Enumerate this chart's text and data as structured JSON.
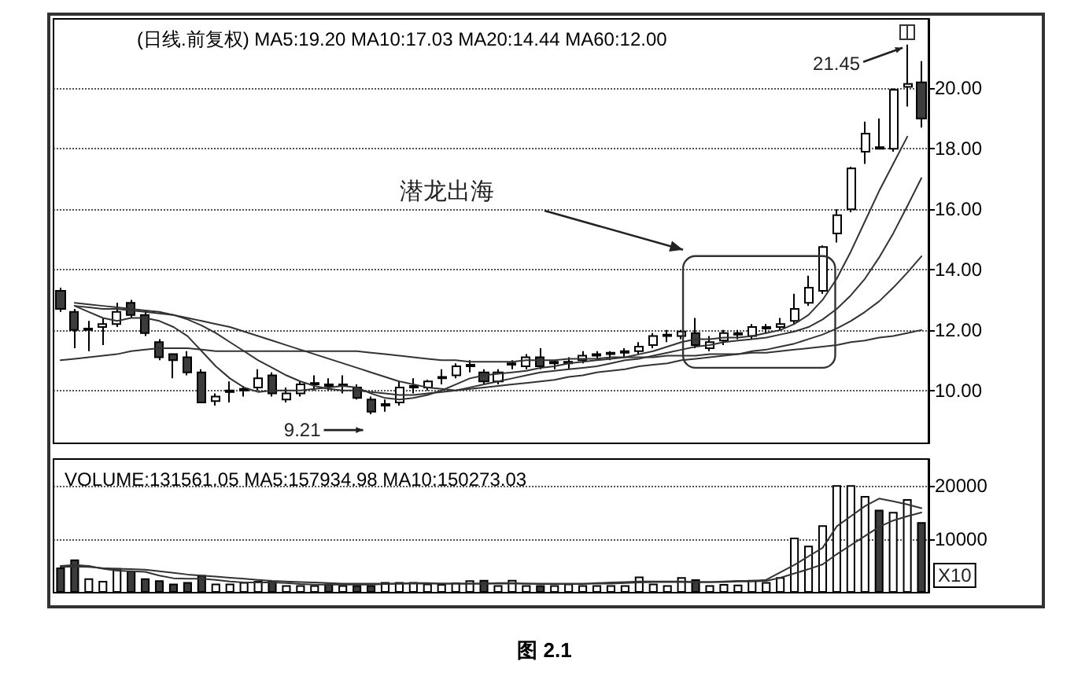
{
  "chart_data": [
    {
      "type": "candlestick",
      "title": "(日线.前复权) MA5:19.20 MA10:17.03 MA20:14.44 MA60:12.00",
      "annotations": [
        "潜龙出海",
        "9.21",
        "21.45"
      ],
      "categories": [
        null,
        null,
        null,
        null,
        null,
        null,
        null,
        null,
        null,
        null,
        null,
        null,
        null,
        null,
        null,
        null,
        null,
        null,
        null,
        null,
        null,
        null,
        null,
        null,
        null,
        null,
        null,
        null,
        null,
        null,
        null,
        null,
        null,
        null,
        null,
        null,
        null,
        null,
        null,
        null,
        null,
        null,
        null,
        null,
        null,
        null,
        null,
        null,
        null,
        null,
        null,
        null,
        null,
        null,
        null,
        null,
        null,
        null,
        null,
        null,
        null,
        null
      ],
      "ohlc": [
        [
          13.3,
          13.4,
          12.6,
          12.7
        ],
        [
          12.6,
          12.7,
          11.4,
          12.0
        ],
        [
          12.0,
          12.3,
          11.3,
          12.05
        ],
        [
          12.1,
          12.4,
          11.5,
          12.2
        ],
        [
          12.2,
          12.9,
          12.1,
          12.6
        ],
        [
          12.9,
          13.0,
          12.4,
          12.5
        ],
        [
          12.5,
          12.6,
          11.8,
          11.9
        ],
        [
          11.6,
          11.7,
          11.0,
          11.1
        ],
        [
          11.2,
          11.2,
          10.4,
          11.0
        ],
        [
          11.1,
          11.3,
          10.5,
          10.6
        ],
        [
          10.6,
          10.7,
          9.6,
          9.6
        ],
        [
          9.65,
          9.9,
          9.5,
          9.8
        ],
        [
          9.95,
          10.3,
          9.6,
          10.0
        ],
        [
          10.0,
          10.15,
          9.8,
          10.05
        ],
        [
          10.1,
          10.7,
          10.0,
          10.4
        ],
        [
          10.5,
          10.6,
          9.8,
          9.9
        ],
        [
          9.7,
          10.1,
          9.6,
          9.9
        ],
        [
          9.9,
          10.3,
          9.8,
          10.2
        ],
        [
          10.2,
          10.5,
          10.0,
          10.25
        ],
        [
          10.2,
          10.4,
          10.0,
          10.15
        ],
        [
          10.15,
          10.5,
          9.9,
          10.2
        ],
        [
          10.1,
          10.2,
          9.7,
          9.75
        ],
        [
          9.7,
          9.8,
          9.21,
          9.3
        ],
        [
          9.5,
          9.7,
          9.3,
          9.55
        ],
        [
          9.6,
          10.3,
          9.5,
          10.1
        ],
        [
          10.1,
          10.4,
          9.9,
          10.15
        ],
        [
          10.1,
          10.35,
          10.0,
          10.3
        ],
        [
          10.4,
          10.7,
          10.2,
          10.45
        ],
        [
          10.5,
          10.9,
          10.4,
          10.8
        ],
        [
          10.8,
          11.0,
          10.6,
          10.85
        ],
        [
          10.6,
          10.7,
          10.2,
          10.3
        ],
        [
          10.3,
          10.7,
          10.2,
          10.6
        ],
        [
          10.85,
          11.0,
          10.7,
          10.9
        ],
        [
          10.8,
          11.2,
          10.7,
          11.1
        ],
        [
          11.1,
          11.4,
          10.7,
          10.8
        ],
        [
          10.9,
          11.0,
          10.7,
          10.95
        ],
        [
          10.9,
          11.1,
          10.7,
          10.95
        ],
        [
          11.0,
          11.3,
          10.9,
          11.15
        ],
        [
          11.15,
          11.3,
          11.0,
          11.2
        ],
        [
          11.2,
          11.3,
          11.0,
          11.25
        ],
        [
          11.25,
          11.4,
          11.1,
          11.3
        ],
        [
          11.3,
          11.6,
          11.2,
          11.45
        ],
        [
          11.5,
          11.9,
          11.4,
          11.8
        ],
        [
          11.8,
          12.0,
          11.6,
          11.85
        ],
        [
          11.8,
          12.0,
          11.7,
          11.95
        ],
        [
          11.9,
          12.4,
          11.4,
          11.5
        ],
        [
          11.4,
          11.8,
          11.3,
          11.6
        ],
        [
          11.65,
          12.0,
          11.5,
          11.9
        ],
        [
          11.85,
          12.0,
          11.7,
          11.9
        ],
        [
          11.8,
          12.2,
          11.7,
          12.1
        ],
        [
          12.05,
          12.2,
          11.9,
          12.1
        ],
        [
          12.1,
          12.4,
          12.0,
          12.2
        ],
        [
          12.3,
          13.2,
          12.2,
          12.7
        ],
        [
          12.9,
          13.8,
          12.8,
          13.4
        ],
        [
          13.3,
          14.8,
          13.2,
          14.75
        ],
        [
          15.2,
          16.0,
          14.9,
          15.8
        ],
        [
          16.0,
          17.4,
          15.9,
          17.35
        ],
        [
          17.9,
          18.9,
          17.5,
          18.5
        ],
        [
          18.0,
          19.0,
          18.0,
          18.05
        ],
        [
          18.0,
          20.0,
          17.9,
          19.95
        ],
        [
          20.05,
          21.45,
          19.4,
          20.15
        ],
        [
          20.2,
          20.9,
          18.7,
          19.0
        ]
      ],
      "series": [
        {
          "type": "line",
          "color": "#333333",
          "values": [
            null,
            12.8,
            12.6,
            12.4,
            12.3,
            12.4,
            12.4,
            12.3,
            12.1,
            11.8,
            11.3,
            10.8,
            10.4,
            10.1,
            9.95,
            10.0,
            10.0,
            10.0,
            10.05,
            10.1,
            10.15,
            10.1,
            9.9,
            9.75,
            9.7,
            9.75,
            9.85,
            10.0,
            10.2,
            10.4,
            10.5,
            10.55,
            10.6,
            10.65,
            10.75,
            10.8,
            10.9,
            10.95,
            11.0,
            11.05,
            11.1,
            11.2,
            11.3,
            11.45,
            11.6,
            11.7,
            11.7,
            11.75,
            11.75,
            11.8,
            11.9,
            12.0,
            12.2,
            12.5,
            13.0,
            13.7,
            14.6,
            15.6,
            16.6,
            17.5,
            18.4,
            null
          ]
        },
        {
          "type": "line",
          "color": "#333333",
          "values": [
            null,
            12.9,
            12.85,
            12.8,
            12.75,
            12.7,
            12.65,
            12.6,
            12.5,
            12.35,
            12.15,
            11.9,
            11.6,
            11.3,
            11.0,
            10.75,
            10.5,
            10.3,
            10.15,
            10.05,
            10.0,
            10.0,
            9.95,
            9.9,
            9.85,
            9.85,
            9.9,
            9.95,
            10.0,
            10.1,
            10.2,
            10.3,
            10.4,
            10.5,
            10.6,
            10.65,
            10.7,
            10.75,
            10.8,
            10.9,
            11.0,
            11.05,
            11.15,
            11.25,
            11.35,
            11.45,
            11.5,
            11.6,
            11.65,
            11.7,
            11.75,
            11.85,
            11.95,
            12.1,
            12.35,
            12.7,
            13.15,
            13.7,
            14.4,
            15.2,
            16.1,
            17.03
          ]
        },
        {
          "type": "line",
          "color": "#333333",
          "values": [
            null,
            12.8,
            12.75,
            12.7,
            12.7,
            12.65,
            12.6,
            12.55,
            12.5,
            12.4,
            12.3,
            12.2,
            12.1,
            11.95,
            11.8,
            11.65,
            11.5,
            11.35,
            11.2,
            11.05,
            10.9,
            10.75,
            10.6,
            10.45,
            10.3,
            10.2,
            10.1,
            10.05,
            10.0,
            10.05,
            10.1,
            10.15,
            10.2,
            10.25,
            10.3,
            10.35,
            10.45,
            10.5,
            10.6,
            10.65,
            10.7,
            10.8,
            10.85,
            10.9,
            11.0,
            11.05,
            11.1,
            11.15,
            11.2,
            11.3,
            11.35,
            11.45,
            11.55,
            11.7,
            11.85,
            12.05,
            12.3,
            12.6,
            12.95,
            13.4,
            13.9,
            14.44
          ]
        },
        {
          "type": "line",
          "color": "#333333",
          "values": [
            11.0,
            11.05,
            11.1,
            11.15,
            11.2,
            11.3,
            11.35,
            11.4,
            11.4,
            11.4,
            11.35,
            11.3,
            11.3,
            11.3,
            11.3,
            11.3,
            11.3,
            11.3,
            11.3,
            11.3,
            11.3,
            11.3,
            11.25,
            11.2,
            11.15,
            11.1,
            11.05,
            11.0,
            11.0,
            10.95,
            10.95,
            10.95,
            10.95,
            11.0,
            11.0,
            11.0,
            11.05,
            11.05,
            11.05,
            11.1,
            11.1,
            11.1,
            11.1,
            11.15,
            11.15,
            11.15,
            11.2,
            11.2,
            11.2,
            11.25,
            11.25,
            11.3,
            11.35,
            11.4,
            11.45,
            11.5,
            11.6,
            11.65,
            11.75,
            11.8,
            11.9,
            12.0
          ]
        }
      ],
      "ylim": [
        8.25,
        22.3
      ],
      "yticks": [
        {
          "value": 10,
          "label": "10.00"
        },
        {
          "value": 12,
          "label": "12.00"
        },
        {
          "value": 14,
          "label": "14.00"
        },
        {
          "value": 16,
          "label": "16.00"
        },
        {
          "value": 18,
          "label": "18.00"
        },
        {
          "value": 20,
          "label": "20.00"
        }
      ],
      "grid": "y"
    },
    {
      "type": "bar",
      "title": "VOLUME:131561.05 MA5:157934.98 MA10:150273.03",
      "annotations": [
        "X10",
        "图 2.1"
      ],
      "categories": [
        null,
        null,
        null,
        null,
        null,
        null,
        null,
        null,
        null,
        null,
        null,
        null,
        null,
        null,
        null,
        null,
        null,
        null,
        null,
        null,
        null,
        null,
        null,
        null,
        null,
        null,
        null,
        null,
        null,
        null,
        null,
        null,
        null,
        null,
        null,
        null,
        null,
        null,
        null,
        null,
        null,
        null,
        null,
        null,
        null,
        null,
        null,
        null,
        null,
        null,
        null,
        null,
        null,
        null,
        null,
        null,
        null,
        null,
        null,
        null,
        null,
        null
      ],
      "values": [
        4700,
        6200,
        2700,
        2200,
        4600,
        4100,
        2700,
        2300,
        1700,
        2000,
        3300,
        1700,
        1700,
        2000,
        2200,
        2200,
        1400,
        1400,
        1400,
        1700,
        1400,
        1400,
        1400,
        2000,
        2000,
        2000,
        1700,
        1600,
        1900,
        2300,
        2400,
        1400,
        2400,
        1400,
        1400,
        1400,
        1700,
        1400,
        1400,
        1400,
        1400,
        3000,
        1700,
        1400,
        2900,
        2500,
        1400,
        1600,
        1500,
        2400,
        2000,
        2900,
        10300,
        8800,
        12600,
        20100,
        20100,
        18100,
        15500,
        15100,
        17500,
        13200
      ],
      "colors": [
        "#3c3c3c",
        "#3c3c3c",
        "#ffffff",
        "#ffffff",
        "#ffffff",
        "#3c3c3c",
        "#3c3c3c",
        "#3c3c3c",
        "#3c3c3c",
        "#3c3c3c",
        "#3c3c3c",
        "#ffffff",
        "#ffffff",
        "#ffffff",
        "#ffffff",
        "#3c3c3c",
        "#ffffff",
        "#ffffff",
        "#ffffff",
        "#3c3c3c",
        "#ffffff",
        "#3c3c3c",
        "#3c3c3c",
        "#ffffff",
        "#ffffff",
        "#ffffff",
        "#ffffff",
        "#ffffff",
        "#ffffff",
        "#ffffff",
        "#3c3c3c",
        "#ffffff",
        "#ffffff",
        "#ffffff",
        "#3c3c3c",
        "#ffffff",
        "#ffffff",
        "#ffffff",
        "#ffffff",
        "#ffffff",
        "#ffffff",
        "#ffffff",
        "#ffffff",
        "#ffffff",
        "#ffffff",
        "#3c3c3c",
        "#ffffff",
        "#ffffff",
        "#ffffff",
        "#ffffff",
        "#ffffff",
        "#ffffff",
        "#ffffff",
        "#ffffff",
        "#ffffff",
        "#ffffff",
        "#ffffff",
        "#ffffff",
        "#3c3c3c",
        "#ffffff",
        "#ffffff",
        "#3c3c3c"
      ],
      "series": [
        {
          "type": "line",
          "color": "#333333",
          "values": [
            5000,
            5200,
            5000,
            4500,
            4100,
            4000,
            3900,
            3200,
            2700,
            2600,
            2600,
            2400,
            2100,
            1900,
            1900,
            1900,
            1800,
            1600,
            1500,
            1500,
            1500,
            1500,
            1500,
            1600,
            1700,
            1800,
            1800,
            1700,
            1700,
            1700,
            1700,
            1800,
            1800,
            1700,
            1600,
            1600,
            1600,
            1600,
            1800,
            1900,
            2000,
            2100,
            2100,
            2100,
            2100,
            2000,
            2000,
            2100,
            2200,
            2200,
            2400,
            3800,
            5200,
            6800,
            8400,
            12400,
            14300,
            16200,
            17600,
            17100,
            16500,
            15800
          ]
        },
        {
          "type": "line",
          "color": "#333333",
          "values": [
            4800,
            4900,
            4800,
            4600,
            4500,
            4400,
            4300,
            4000,
            3700,
            3400,
            3200,
            3000,
            2800,
            2600,
            2400,
            2200,
            2100,
            2000,
            1900,
            1800,
            1700,
            1700,
            1700,
            1700,
            1700,
            1700,
            1700,
            1700,
            1700,
            1700,
            1700,
            1700,
            1700,
            1700,
            1700,
            1700,
            1700,
            1700,
            1700,
            1700,
            1800,
            1900,
            2000,
            2000,
            2000,
            2000,
            2000,
            2000,
            2100,
            2100,
            2200,
            2800,
            3600,
            4400,
            5300,
            7200,
            8900,
            10600,
            12300,
            13500,
            14300,
            15000
          ]
        }
      ],
      "ylim": [
        0,
        25000
      ],
      "yticks": [
        10000,
        20000
      ],
      "grid": "y"
    }
  ]
}
